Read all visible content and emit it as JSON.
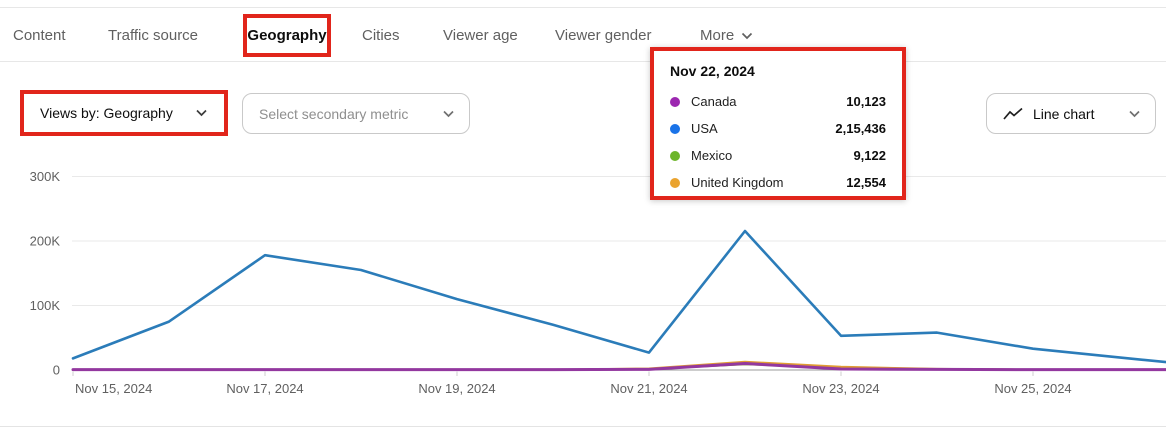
{
  "tabs": {
    "items": [
      {
        "label": "Content",
        "active": false
      },
      {
        "label": "Traffic source",
        "active": false
      },
      {
        "label": "Geography",
        "active": true
      },
      {
        "label": "Cities",
        "active": false
      },
      {
        "label": "Viewer age",
        "active": false
      },
      {
        "label": "Viewer gender",
        "active": false
      },
      {
        "label": "More",
        "active": false
      }
    ]
  },
  "controls": {
    "views_by_label": "Views by: Geography",
    "secondary_metric_placeholder": "Select secondary metric",
    "chart_type_label": "Line chart"
  },
  "tooltip": {
    "title": "Nov 22, 2024",
    "rows": [
      {
        "label": "Canada",
        "value": "10,123",
        "color": "#9c27b0"
      },
      {
        "label": "USA",
        "value": "2,15,436",
        "color": "#1a73e8"
      },
      {
        "label": "Mexico",
        "value": "9,122",
        "color": "#6cb52b"
      },
      {
        "label": "United Kingdom",
        "value": "12,554",
        "color": "#eaa32f"
      }
    ]
  },
  "annotation": {
    "color": "#e1251b"
  },
  "chart_data": {
    "type": "line",
    "title": "Views by Geography over time",
    "x": [
      "Nov 15, 2024",
      "Nov 16, 2024",
      "Nov 17, 2024",
      "Nov 18, 2024",
      "Nov 19, 2024",
      "Nov 20, 2024",
      "Nov 21, 2024",
      "Nov 22, 2024",
      "Nov 23, 2024",
      "Nov 24, 2024",
      "Nov 25, 2024",
      "Nov 26, 2024"
    ],
    "x_tick_labels": [
      "Nov 15, 2024",
      "Nov 17, 2024",
      "Nov 19, 2024",
      "Nov 21, 2024",
      "Nov 23, 2024",
      "Nov 25, 2024"
    ],
    "y_ticks": [
      0,
      100000,
      200000,
      300000
    ],
    "y_tick_labels": [
      "0",
      "100K",
      "200K",
      "300K"
    ],
    "ylim": [
      0,
      310000
    ],
    "grid": true,
    "legend": "none (values shown in hover tooltip)",
    "series": [
      {
        "name": "Mexico",
        "color": "#7d9b26",
        "values": [
          300,
          300,
          300,
          300,
          300,
          300,
          1500,
          9122,
          3500,
          1200,
          400,
          300
        ]
      },
      {
        "name": "United Kingdom",
        "color": "#e09c33",
        "values": [
          300,
          300,
          300,
          300,
          300,
          300,
          2200,
          12554,
          4800,
          1600,
          500,
          300
        ]
      },
      {
        "name": "Canada",
        "color": "#93389f",
        "values": [
          600,
          600,
          600,
          600,
          600,
          600,
          900,
          10123,
          1600,
          900,
          600,
          600
        ]
      },
      {
        "name": "USA",
        "color": "#2b7cb9",
        "values": [
          18000,
          75000,
          178000,
          155000,
          110000,
          70000,
          27000,
          215436,
          53000,
          58000,
          33000,
          18000
        ]
      }
    ]
  }
}
